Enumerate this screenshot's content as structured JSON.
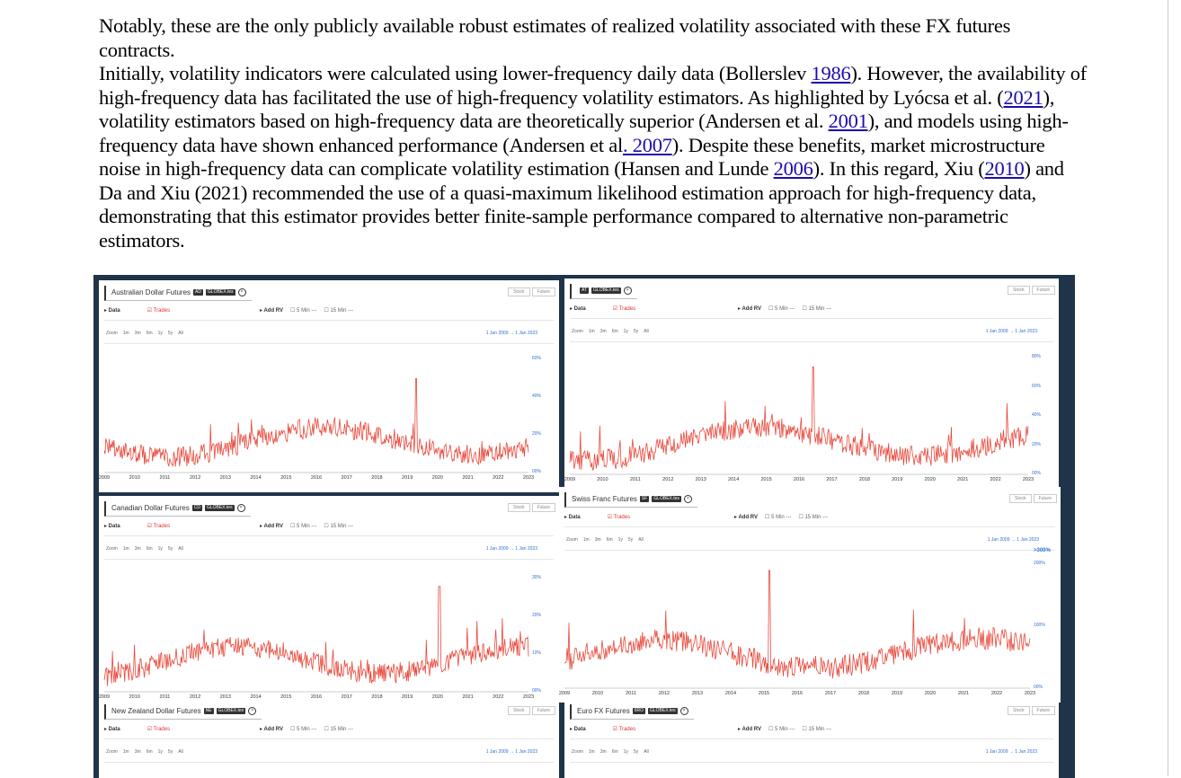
{
  "paragraph": {
    "p1": "Notably, these are the only publicly available robust estimates of realized volatility associated with these FX futures contracts.",
    "p2_a": "Initially, volatility indicators were calculated using lower-frequency daily data (Bollerslev ",
    "p2_link1": "1986",
    "p2_b": "). However, the availability of high-frequency data has facilitated the use of high-frequency volatility estimators. As highlighted by Lyócsa et al. (",
    "p2_link2": "2021",
    "p2_c": "), volatility estimators based on high-frequency data are theoretically superior (Andersen et al. ",
    "p2_link3": "2001",
    "p2_d": "), and models using high-frequency data have shown enhanced performance (Andersen et al",
    "p2_link4": ". 2007",
    "p2_e": "). Despite these benefits, market microstructure noise in high-frequency data can complicate volatility estimation (Hansen and Lunde ",
    "p2_link5": "2006",
    "p2_f": "). In this regard, Xiu (",
    "p2_link6": "2010",
    "p2_g": ") and Da and Xiu (2021) recommended the use of a quasi-maximum likelihood estimation approach for high-frequency data, demonstrating that this estimator provides better finite-sample performance compared to alternative non-parametric estimators."
  },
  "common": {
    "stock": "Stock",
    "future": "Future",
    "data": "Data",
    "trades": "Trades",
    "add_rv": "Add RV",
    "rv5": "5 Min ---",
    "rv15": "15 Min ---",
    "zoom": [
      "Zoom",
      "1m",
      "3m",
      "6m",
      "1y",
      "5y",
      "All"
    ],
    "range": "1 Jan 2009  →  1 Jan 2023",
    "badge2": "GLOBEX.tes",
    "close_glyph": "×",
    "years": [
      "2009",
      "2010",
      "2011",
      "2012",
      "2013",
      "2014",
      "2015",
      "2016",
      "2017",
      "2018",
      "2019",
      "2020",
      "2021",
      "2022",
      "2023"
    ]
  },
  "panels": [
    {
      "title": "Australian Dollar Futures",
      "badge": "AD",
      "yticks": [
        "60%",
        "40%",
        "20%",
        "00%"
      ],
      "peak": 0.17,
      "spike": 0.735
    },
    {
      "title": "",
      "badge": "AT",
      "yticks": [
        "80%",
        "60%",
        "40%",
        "20%",
        "00%"
      ],
      "peak": 0.08,
      "spike": 0.53
    },
    {
      "title": "Canadian Dollar Futures",
      "badge": "CD",
      "yticks": [
        "30%",
        "20%",
        "10%",
        "00%"
      ],
      "peak": 0.07,
      "spike": 0.79
    },
    {
      "title": "Swiss Franc Futures",
      "badge": "SF",
      "yticks": [
        "200%",
        "100%",
        "00%"
      ],
      "over": ">300%",
      "peak": 0.05,
      "spike": 0.44
    },
    {
      "title": "New Zealand Dollar Futures",
      "badge": "NE",
      "yticks": []
    },
    {
      "title": "Euro FX Futures",
      "badge": "6RO",
      "yticks": []
    }
  ],
  "colors": {
    "series": "#e8483b",
    "frame": "#1f3349",
    "link": "#1a0dab"
  }
}
